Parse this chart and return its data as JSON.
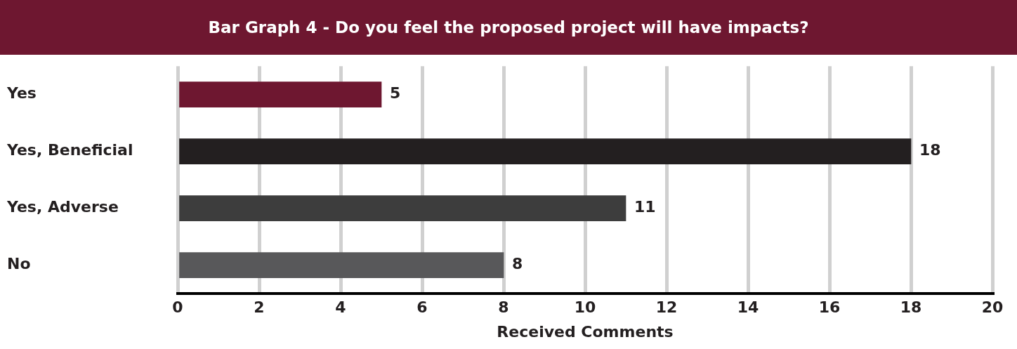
{
  "chart_data": {
    "type": "bar",
    "orientation": "horizontal",
    "title": "Bar Graph 4 - Do you feel the proposed project will have impacts?",
    "xlabel": "Received Comments",
    "categories": [
      "Yes",
      "Yes, Beneficial",
      "Yes, Adverse",
      "No"
    ],
    "values": [
      5,
      18,
      11,
      8
    ],
    "colors": [
      "#6e1730",
      "#231f20",
      "#3d3d3d",
      "#58585a"
    ],
    "xlim": [
      0,
      20
    ],
    "xticks": [
      0,
      2,
      4,
      6,
      8,
      10,
      12,
      14,
      16,
      18,
      20
    ],
    "grid": "x",
    "data_labels": true,
    "legend": false
  }
}
